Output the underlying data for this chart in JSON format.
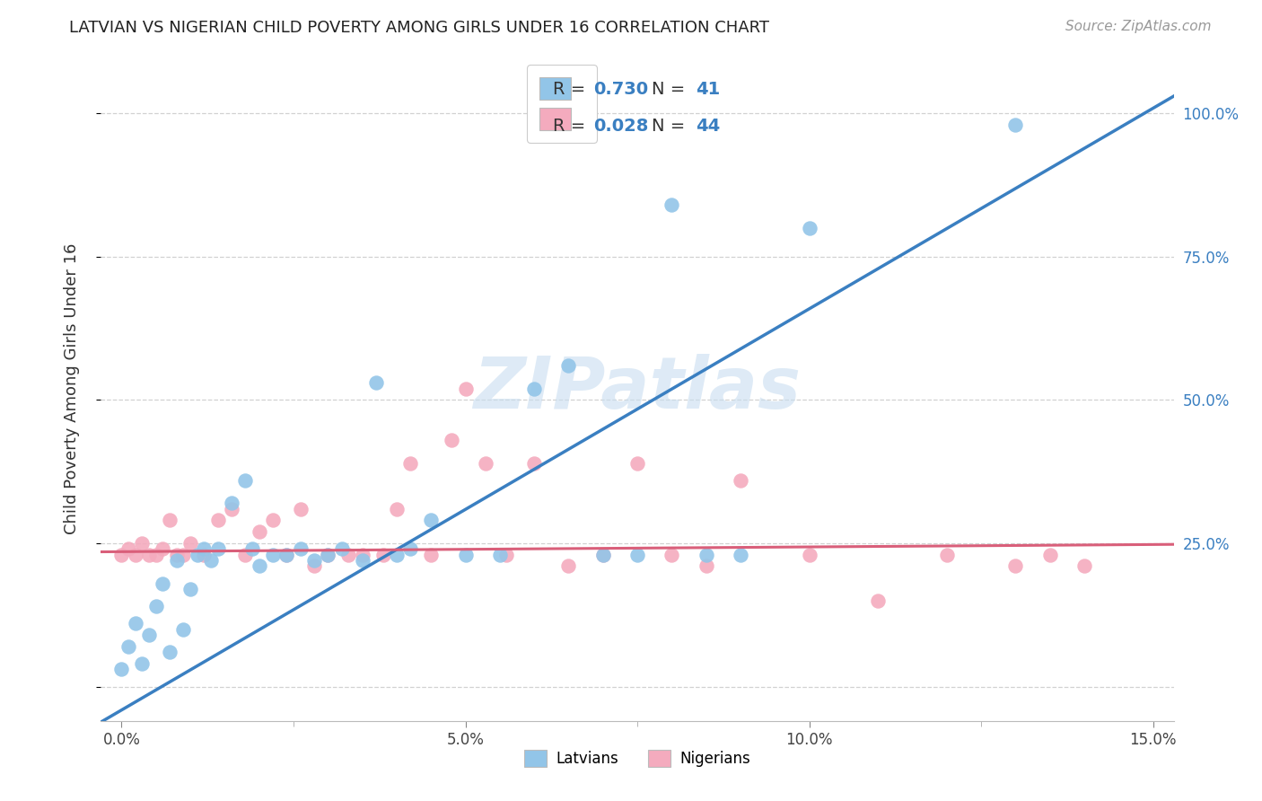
{
  "title": "LATVIAN VS NIGERIAN CHILD POVERTY AMONG GIRLS UNDER 16 CORRELATION CHART",
  "source": "Source: ZipAtlas.com",
  "ylabel": "Child Poverty Among Girls Under 16",
  "latvian_R": "0.730",
  "latvian_N": "41",
  "nigerian_R": "0.028",
  "nigerian_N": "44",
  "latvian_color": "#92C5E8",
  "nigerian_color": "#F4ABBE",
  "trendline_latvian": "#3A7FC1",
  "trendline_nigerian": "#D95F7A",
  "label_color": "#3A7FC1",
  "watermark_color": "#C8DDF0",
  "lv_x": [
    0.0,
    0.001,
    0.002,
    0.003,
    0.004,
    0.005,
    0.006,
    0.007,
    0.008,
    0.009,
    0.01,
    0.011,
    0.012,
    0.013,
    0.014,
    0.016,
    0.018,
    0.019,
    0.02,
    0.022,
    0.024,
    0.026,
    0.028,
    0.03,
    0.032,
    0.035,
    0.037,
    0.04,
    0.042,
    0.045,
    0.05,
    0.055,
    0.06,
    0.065,
    0.07,
    0.075,
    0.08,
    0.085,
    0.09,
    0.1,
    0.13
  ],
  "lv_y": [
    0.03,
    0.07,
    0.11,
    0.04,
    0.09,
    0.14,
    0.18,
    0.06,
    0.22,
    0.1,
    0.17,
    0.23,
    0.24,
    0.22,
    0.24,
    0.32,
    0.36,
    0.24,
    0.21,
    0.23,
    0.23,
    0.24,
    0.22,
    0.23,
    0.24,
    0.22,
    0.53,
    0.23,
    0.24,
    0.29,
    0.23,
    0.23,
    0.52,
    0.56,
    0.23,
    0.23,
    0.84,
    0.23,
    0.23,
    0.8,
    0.98
  ],
  "ng_x": [
    0.0,
    0.001,
    0.002,
    0.003,
    0.004,
    0.005,
    0.006,
    0.007,
    0.008,
    0.009,
    0.01,
    0.012,
    0.014,
    0.016,
    0.018,
    0.02,
    0.022,
    0.024,
    0.026,
    0.028,
    0.03,
    0.033,
    0.035,
    0.038,
    0.04,
    0.042,
    0.045,
    0.048,
    0.05,
    0.053,
    0.056,
    0.06,
    0.065,
    0.07,
    0.075,
    0.08,
    0.085,
    0.09,
    0.1,
    0.11,
    0.12,
    0.13,
    0.135,
    0.14
  ],
  "ng_y": [
    0.23,
    0.24,
    0.23,
    0.25,
    0.23,
    0.23,
    0.24,
    0.29,
    0.23,
    0.23,
    0.25,
    0.23,
    0.29,
    0.31,
    0.23,
    0.27,
    0.29,
    0.23,
    0.31,
    0.21,
    0.23,
    0.23,
    0.23,
    0.23,
    0.31,
    0.39,
    0.23,
    0.43,
    0.52,
    0.39,
    0.23,
    0.39,
    0.21,
    0.23,
    0.39,
    0.23,
    0.21,
    0.36,
    0.23,
    0.15,
    0.23,
    0.21,
    0.23,
    0.21
  ],
  "xlim": [
    -0.003,
    0.153
  ],
  "ylim": [
    -0.06,
    1.1
  ],
  "xticks": [
    0.0,
    0.05,
    0.1,
    0.15
  ],
  "xtick_labels": [
    "0.0%",
    "5.0%",
    "10.0%",
    "15.0%"
  ],
  "yticks_right": [
    0.25,
    0.5,
    0.75,
    1.0
  ],
  "ytick_labels_right": [
    "25.0%",
    "50.0%",
    "75.0%",
    "100.0%"
  ],
  "grid_yticks": [
    0.0,
    0.25,
    0.5,
    0.75,
    1.0
  ],
  "lv_trend_x": [
    -0.003,
    0.153
  ],
  "lv_trend_y": [
    -0.062,
    1.03
  ],
  "ng_trend_x": [
    -0.003,
    0.153
  ],
  "ng_trend_y": [
    0.235,
    0.248
  ]
}
